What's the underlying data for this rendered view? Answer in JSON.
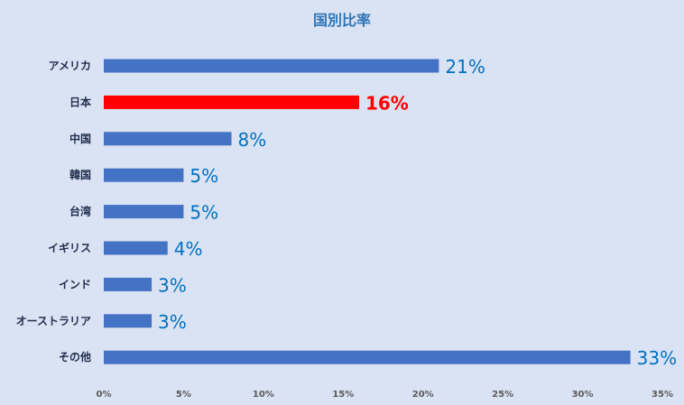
{
  "chart_data": {
    "type": "bar",
    "orientation": "horizontal",
    "title": "国別比率",
    "categories": [
      "アメリカ",
      "日本",
      "中国",
      "韓国",
      "台湾",
      "イギリス",
      "インド",
      "オーストラリア",
      "その他"
    ],
    "values": [
      21,
      16,
      8,
      5,
      5,
      4,
      3,
      3,
      33
    ],
    "value_labels": [
      "21%",
      "16%",
      "8%",
      "5%",
      "5%",
      "4%",
      "3%",
      "3%",
      "33%"
    ],
    "xlim": [
      0,
      35
    ],
    "x_ticks": [
      0,
      5,
      10,
      15,
      20,
      25,
      30,
      35
    ],
    "x_tick_labels": [
      "0%",
      "5%",
      "10%",
      "15%",
      "20%",
      "25%",
      "30%",
      "35%"
    ],
    "grid": false,
    "legend": "none",
    "highlight_category": "日本",
    "colors": {
      "bar": "#4472c4",
      "highlight_bar": "#ff0000",
      "data_label": "#0070c0",
      "highlight_label": "#ff0000",
      "background": "#dae3f3"
    }
  }
}
